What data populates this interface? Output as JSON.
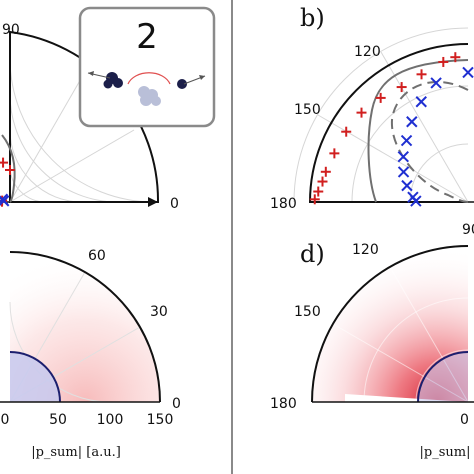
{
  "chart_data": [
    {
      "panel": "a",
      "type": "scatter",
      "coordinates": "polar",
      "title": "",
      "angle_ticks": [
        "90",
        "0"
      ],
      "inset": {
        "label": "2"
      },
      "series": [
        {
          "marker": "+",
          "color": "#d11f1f",
          "points": [
            [
              90,
              0.2
            ],
            [
              100,
              0.25
            ],
            [
              120,
              0.25
            ],
            [
              135,
              0.2
            ],
            [
              150,
              0.15
            ],
            [
              160,
              0.1
            ],
            [
              170,
              0.05
            ],
            [
              178,
              0.05
            ]
          ]
        },
        {
          "marker": "x",
          "color": "#1f2fd1",
          "points": [
            [
              160,
              0.05
            ],
            [
              170,
              0.04
            ]
          ]
        }
      ]
    },
    {
      "panel": "b",
      "type": "scatter",
      "coordinates": "polar",
      "label": "b)",
      "angle_ticks": [
        "120",
        "150",
        "180",
        "90"
      ],
      "series": [
        {
          "marker": "+",
          "color": "#d11f1f",
          "points": [
            [
              95,
              0.92
            ],
            [
              100,
              0.9
            ],
            [
              110,
              0.86
            ],
            [
              120,
              0.84
            ],
            [
              130,
              0.86
            ],
            [
              140,
              0.88
            ],
            [
              150,
              0.89
            ],
            [
              160,
              0.9
            ],
            [
              168,
              0.92
            ],
            [
              172,
              0.93
            ],
            [
              176,
              0.95
            ],
            [
              179,
              0.97
            ]
          ]
        },
        {
          "marker": "x",
          "color": "#1f2fd1",
          "points": [
            [
              90,
              0.82
            ],
            [
              105,
              0.78
            ],
            [
              115,
              0.7
            ],
            [
              125,
              0.62
            ],
            [
              135,
              0.55
            ],
            [
              145,
              0.5
            ],
            [
              155,
              0.45
            ],
            [
              165,
              0.4
            ],
            [
              175,
              0.35
            ],
            [
              179,
              0.33
            ]
          ]
        }
      ]
    },
    {
      "panel": "c",
      "type": "heatmap",
      "coordinates": "polar",
      "xlabel": "|p_sum| [a.u.]",
      "radial_ticks": [
        "0",
        "50",
        "100",
        "150"
      ],
      "angle_ticks": [
        "60",
        "30",
        "0"
      ],
      "rlim": [
        0,
        150
      ],
      "reference_circle_radius": 50
    },
    {
      "panel": "d",
      "type": "heatmap",
      "coordinates": "polar",
      "label": "d)",
      "xlabel": "|p_sum|",
      "angle_ticks": [
        "120",
        "150",
        "180",
        "90",
        "0"
      ]
    }
  ]
}
